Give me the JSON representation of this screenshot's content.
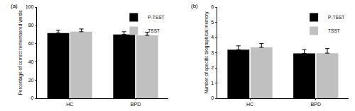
{
  "chart_data": [
    {
      "type": "bar",
      "title": "(a)",
      "y_label": "Percentage of correct remembered words",
      "categories": [
        "HC",
        "BPD"
      ],
      "series": [
        {
          "name": "P-TSST",
          "color": "#000000",
          "values": [
            71.5,
            70
          ],
          "errors": [
            3,
            3
          ]
        },
        {
          "name": "TSST",
          "color": "#c0c0c0",
          "values": [
            73,
            69
          ],
          "errors": [
            3,
            3.5
          ]
        }
      ],
      "ylim": [
        0,
        100
      ],
      "yticks": [
        0,
        20,
        40,
        60,
        80,
        100
      ],
      "grid": false,
      "legend": "upper right"
    },
    {
      "type": "bar",
      "title": "(b)",
      "y_label": "Number of specific biographical memory",
      "categories": [
        "HC",
        "BPD"
      ],
      "series": [
        {
          "name": "P-TSST",
          "color": "#000000",
          "values": [
            3.2,
            2.95
          ],
          "errors": [
            0.25,
            0.25
          ]
        },
        {
          "name": "TSST",
          "color": "#c0c0c0",
          "values": [
            3.35,
            2.97
          ],
          "errors": [
            0.25,
            0.3
          ]
        }
      ],
      "ylim": [
        0,
        6
      ],
      "yticks": [
        0,
        1,
        2,
        3,
        4,
        5,
        6
      ],
      "grid": false,
      "legend": "upper right"
    }
  ]
}
